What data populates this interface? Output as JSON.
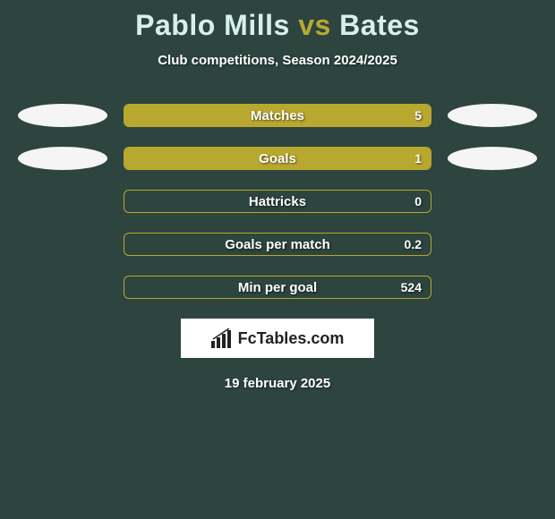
{
  "title": {
    "player1": "Pablo Mills",
    "vs": "vs",
    "player2": "Bates",
    "player1_color": "#d6f0ec",
    "vs_color": "#b8a82f",
    "player2_color": "#d6f0ec"
  },
  "subtitle": "Club competitions, Season 2024/2025",
  "background_color": "#2d443f",
  "ellipse_color": "#f5f5f5",
  "bar_border_color": "#b8a82f",
  "bar_fill_color": "#b8a82f",
  "rows": [
    {
      "label": "Matches",
      "value": "5",
      "fill_pct": 100,
      "left_ellipse": true,
      "right_ellipse": true
    },
    {
      "label": "Goals",
      "value": "1",
      "fill_pct": 100,
      "left_ellipse": true,
      "right_ellipse": true
    },
    {
      "label": "Hattricks",
      "value": "0",
      "fill_pct": 0,
      "left_ellipse": false,
      "right_ellipse": false
    },
    {
      "label": "Goals per match",
      "value": "0.2",
      "fill_pct": 0,
      "left_ellipse": false,
      "right_ellipse": false
    },
    {
      "label": "Min per goal",
      "value": "524",
      "fill_pct": 0,
      "left_ellipse": false,
      "right_ellipse": false
    }
  ],
  "logo_text": "FcTables.com",
  "date": "19 february 2025"
}
